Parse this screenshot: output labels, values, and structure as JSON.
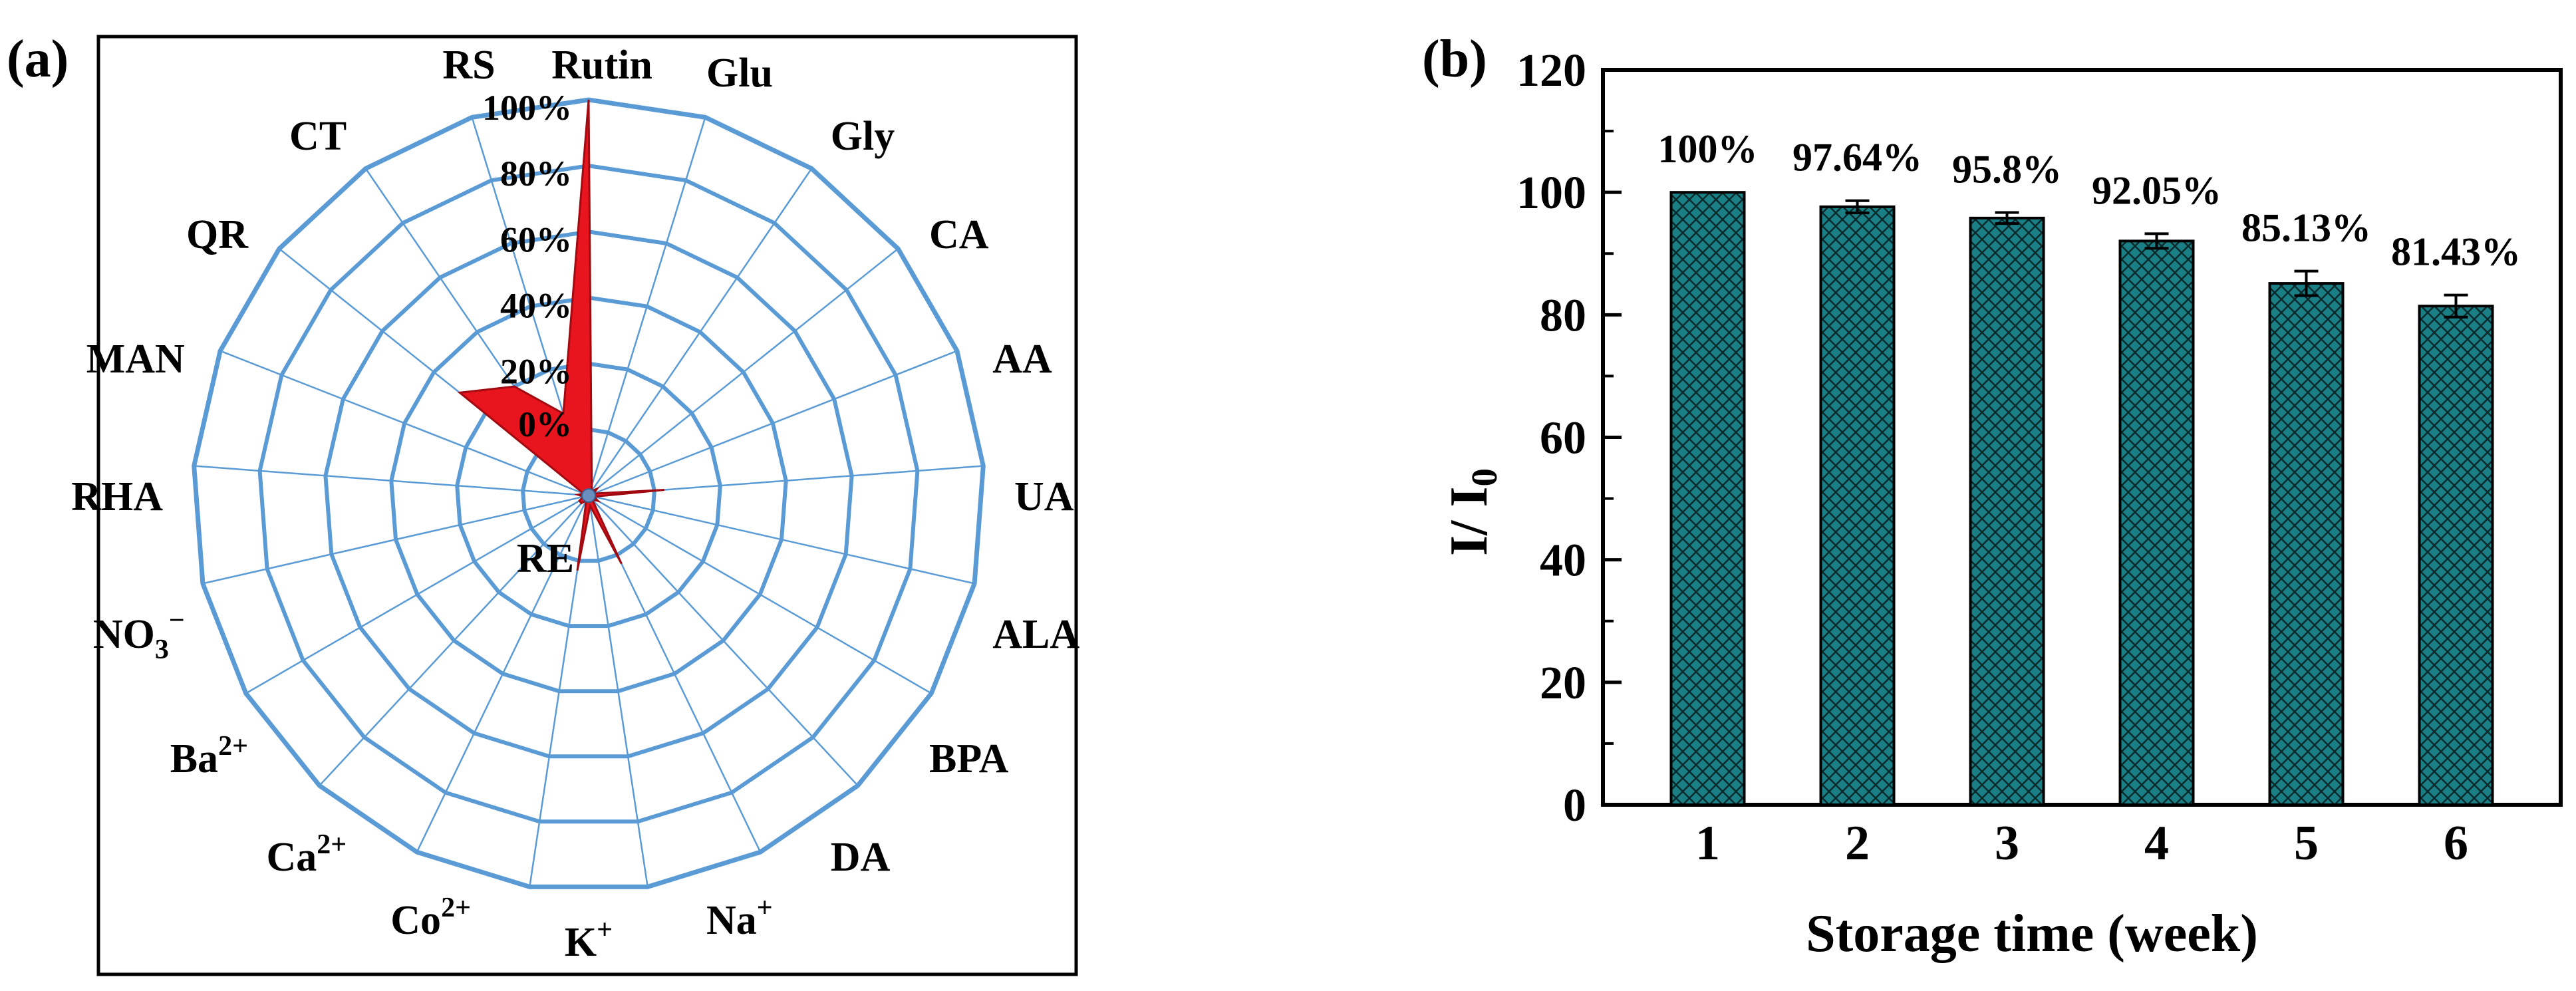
{
  "panel_a": {
    "label": "(a)",
    "chart_data": {
      "type": "radar",
      "axes": [
        "Rutin",
        "Glu",
        "Gly",
        "CA",
        "AA",
        "UA",
        "ALA",
        "BPA",
        "DA",
        "Na",
        "K",
        "Co",
        "Ca",
        "Ba",
        "NO",
        "RHA",
        "MAN",
        "QR",
        "CT",
        "RS",
        "RE"
      ],
      "superscripts": [
        "",
        "",
        "",
        "",
        "",
        "",
        "",
        "",
        "",
        "+",
        "+",
        "2+",
        "2+",
        "2+",
        "−",
        "",
        "",
        "",
        "",
        "",
        ""
      ],
      "subscripts": [
        "",
        "",
        "",
        "",
        "",
        "",
        "",
        "",
        "",
        "",
        "",
        "",
        "",
        "",
        "3",
        "",
        "",
        "",
        "",
        "",
        ""
      ],
      "values": [
        100,
        2,
        1,
        2,
        1,
        3,
        1,
        2,
        1,
        3,
        2,
        3,
        1,
        2,
        2,
        1,
        2,
        1,
        30,
        20,
        6
      ],
      "radial_ticks": [
        "0%",
        "20%",
        "40%",
        "60%",
        "80%",
        "100%"
      ],
      "rlim": [
        0,
        100
      ],
      "highlight_axis": "Rutin",
      "fill_color": "#e8141e",
      "grid_color": "#5b9bd5"
    }
  },
  "panel_b": {
    "label": "(b)",
    "chart_data": {
      "type": "bar",
      "categories": [
        "1",
        "2",
        "3",
        "4",
        "5",
        "6"
      ],
      "values": [
        100,
        97.64,
        95.8,
        92.05,
        85.13,
        81.43
      ],
      "errors": [
        0,
        1.0,
        0.9,
        1.2,
        2.0,
        1.8
      ],
      "data_labels": [
        "100%",
        "97.64%",
        "95.8%",
        "92.05%",
        "85.13%",
        "81.43%"
      ],
      "xlabel": "Storage time (week)",
      "ylabel": "I/ I",
      "ylabel_subscript": "0",
      "ylim": [
        0,
        120
      ],
      "yticks": [
        "0",
        "20",
        "40",
        "60",
        "80",
        "100",
        "120"
      ],
      "bar_color": "#1b7f86",
      "pattern": "crosshatch"
    }
  }
}
